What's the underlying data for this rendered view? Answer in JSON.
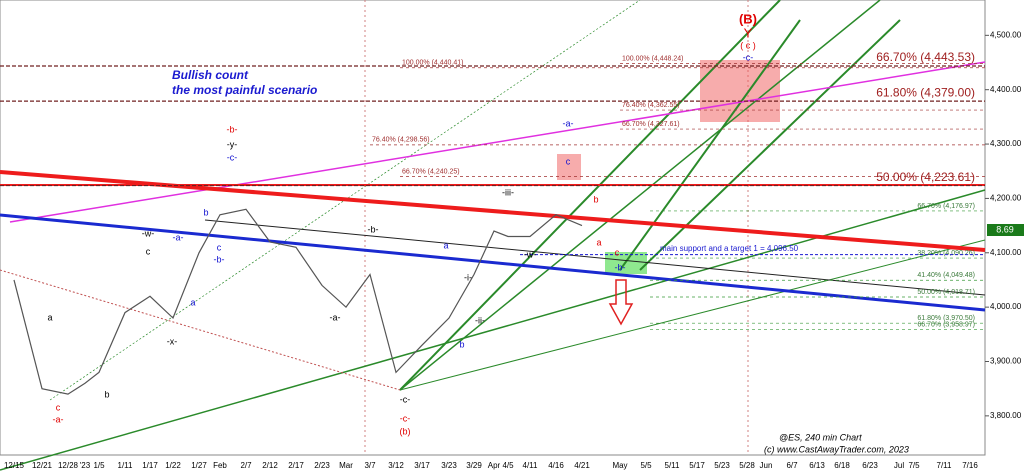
{
  "chart_data": {
    "type": "line",
    "title": "Bullish count",
    "subtitle": "the most painful scenario",
    "x": [
      "12/15",
      "12/21",
      "12/28",
      "'23",
      "1/5",
      "1/11",
      "1/17",
      "1/22",
      "1/27",
      "Feb",
      "2/7",
      "2/12",
      "2/17",
      "2/23",
      "Mar",
      "3/7",
      "3/12",
      "3/17",
      "3/23",
      "3/29",
      "Apr",
      "4/5",
      "4/11",
      "4/16",
      "4/21",
      "May",
      "5/5",
      "5/11",
      "5/17",
      "5/23",
      "5/28",
      "Jun",
      "6/7",
      "6/13",
      "6/18",
      "6/23",
      "Jul",
      "7/5",
      "7/11",
      "7/16"
    ],
    "series": [
      {
        "name": "ES",
        "color": "#555555",
        "values": [
          4050,
          3850,
          3840,
          3860,
          3880,
          3990,
          4020,
          3980,
          4100,
          4170,
          4180,
          4120,
          4110,
          4040,
          4000,
          4060,
          3880,
          3930,
          3980,
          4060,
          4140,
          4130,
          4130,
          4170,
          4150,
          null,
          null,
          null,
          null,
          null,
          null,
          null,
          null,
          null,
          null,
          null,
          null,
          null,
          null,
          null
        ]
      }
    ],
    "ylim": [
      3728,
      4565
    ],
    "yticks": [
      {
        "value": 3800,
        "label": "3,800.00"
      },
      {
        "value": 3900,
        "label": "3,900.00"
      },
      {
        "value": 4000,
        "label": "4,000.00"
      },
      {
        "value": 4100,
        "label": "4,100.00"
      },
      {
        "value": 4200,
        "label": "4,200.00"
      },
      {
        "value": 4300,
        "label": "4,300.00"
      },
      {
        "value": 4400,
        "label": "4,400.00"
      },
      {
        "value": 4500,
        "label": "4,500.00"
      }
    ],
    "major_levels": [
      {
        "value": 4443.53,
        "label": "66.70% (4,443.53)"
      },
      {
        "value": 4379.0,
        "label": "61.80% (4,379.00)"
      },
      {
        "value": 4223.61,
        "label": "50.00% (4,223.61)"
      }
    ],
    "minor_levels": [
      {
        "value": 4440.41,
        "label": "100.00% (4,440.41)"
      },
      {
        "value": 4448.24,
        "label": "100.00% (4,448.24)"
      },
      {
        "value": 4362.55,
        "label": "76.40% (4,362.55)"
      },
      {
        "value": 4327.61,
        "label": "66.70% (4,327.61)"
      },
      {
        "value": 4298.56,
        "label": "76.40% (4,298.56)"
      },
      {
        "value": 4240.25,
        "label": "66.70% (4,240.25)"
      },
      {
        "value": 4176.97,
        "label": "66.70% (4,176.97)"
      },
      {
        "value": 4090.26,
        "label": "38.20% (4,090.26)"
      },
      {
        "value": 4049.48,
        "label": "41.40% (4,049.48)"
      },
      {
        "value": 4018.71,
        "label": "50.00% (4,018.71)"
      },
      {
        "value": 3970.5,
        "label": "61.80% (3,970.50)"
      },
      {
        "value": 3958.97,
        "label": "66.70% (3,958.97)"
      }
    ],
    "support": {
      "value": 4096.5,
      "label": "main support and a target 1 = 4,096.50"
    },
    "price_tag": "8.69",
    "wave_labels": [
      {
        "text": "(B)",
        "color": "#e00000"
      },
      {
        "text": "Y",
        "color": "#e00000"
      },
      {
        "text": "( c )",
        "color": "#e00000"
      },
      {
        "text": "-c-",
        "color": "#1010d0"
      },
      {
        "text": "-b-",
        "color": "#e00000"
      },
      {
        "text": "-y-",
        "color": "#000000"
      },
      {
        "text": "-c-",
        "color": "#1010d0"
      },
      {
        "text": "b",
        "color": "#1010d0"
      },
      {
        "text": "-w-",
        "color": "#000000"
      },
      {
        "text": "c",
        "color": "#000000"
      },
      {
        "text": "-a-",
        "color": "#1010d0"
      },
      {
        "text": "c",
        "color": "#1010d0"
      },
      {
        "text": "-b-",
        "color": "#1010d0"
      },
      {
        "text": "a",
        "color": "#1010d0"
      },
      {
        "text": "a",
        "color": "#000000"
      },
      {
        "text": "-x-",
        "color": "#000000"
      },
      {
        "text": "b",
        "color": "#000000"
      },
      {
        "text": "c",
        "color": "#e00000"
      },
      {
        "text": "-a-",
        "color": "#e00000"
      },
      {
        "text": "-b-",
        "color": "#000000"
      },
      {
        "text": "-a-",
        "color": "#000000"
      },
      {
        "text": "-i-",
        "color": "#000000"
      },
      {
        "text": "-ii-",
        "color": "#000000"
      },
      {
        "text": "b",
        "color": "#1010d0"
      },
      {
        "text": "-c-",
        "color": "#000000"
      },
      {
        "text": "-c-",
        "color": "#e00000"
      },
      {
        "text": "(b)",
        "color": "#e00000"
      },
      {
        "text": "-iii-",
        "color": "#000000"
      },
      {
        "text": "-a-",
        "color": "#1010d0"
      },
      {
        "text": "c",
        "color": "#1010d0"
      },
      {
        "text": "b",
        "color": "#e00000"
      },
      {
        "text": "a",
        "color": "#e00000"
      },
      {
        "text": "-w-",
        "color": "#000000"
      },
      {
        "text": "a",
        "color": "#1010d0"
      },
      {
        "text": "-b-",
        "color": "#1010d0"
      },
      {
        "text": "c",
        "color": "#e00000"
      }
    ],
    "footer": [
      "@ES, 240 min Chart",
      "(c) www.CastAwayTrader.com, 2023"
    ]
  }
}
